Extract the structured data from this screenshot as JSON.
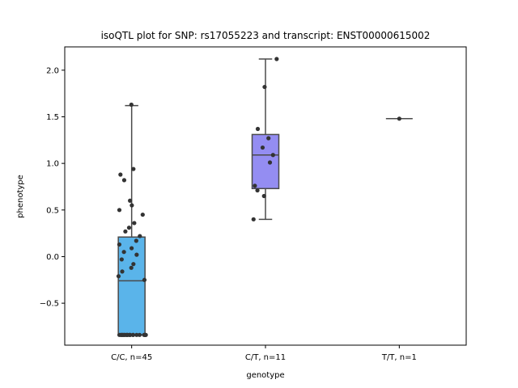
{
  "chart_data": {
    "type": "box",
    "title": "isoQTL plot for SNP: rs17055223 and transcript: ENST00000615002",
    "xlabel": "genotype",
    "ylabel": "phenotype",
    "ylim": [
      -0.95,
      2.25
    ],
    "yticks": [
      -0.5,
      0.0,
      0.5,
      1.0,
      1.5,
      2.0
    ],
    "ytick_labels": [
      "−0.5",
      "0.0",
      "0.5",
      "1.0",
      "1.5",
      "2.0"
    ],
    "grid": false,
    "categories": [
      "C/C, n=45",
      "C/T, n=11",
      "T/T, n=1"
    ],
    "boxes": [
      {
        "category": "C/C, n=45",
        "color": "#5ab4ea",
        "whisker_low": -0.84,
        "q1": -0.84,
        "median": -0.26,
        "q3": 0.21,
        "whisker_high": 1.62
      },
      {
        "category": "C/T, n=11",
        "color": "#948df2",
        "whisker_low": 0.4,
        "q1": 0.73,
        "median": 1.09,
        "q3": 1.31,
        "whisker_high": 2.12
      },
      {
        "category": "T/T, n=1",
        "color": "#c070e0",
        "whisker_low": 1.48,
        "q1": 1.48,
        "median": 1.48,
        "q3": 1.48,
        "whisker_high": 1.48
      }
    ],
    "points": [
      {
        "category": "C/C, n=45",
        "values": [
          1.63,
          0.94,
          0.88,
          0.82,
          0.6,
          0.55,
          0.5,
          0.45,
          0.36,
          0.31,
          0.27,
          0.22,
          0.17,
          0.13,
          0.09,
          0.05,
          0.02,
          -0.03,
          -0.08,
          -0.12,
          -0.16,
          -0.21,
          -0.25,
          -0.84,
          -0.84,
          -0.84,
          -0.84,
          -0.84,
          -0.84,
          -0.84,
          -0.84,
          -0.84,
          -0.84,
          -0.84,
          -0.84,
          -0.84,
          -0.84,
          -0.84,
          -0.84,
          -0.84,
          -0.84,
          -0.84,
          -0.84,
          -0.84,
          -0.84
        ]
      },
      {
        "category": "C/T, n=11",
        "values": [
          2.12,
          1.82,
          1.37,
          1.27,
          1.17,
          1.09,
          1.01,
          0.76,
          0.71,
          0.65,
          0.4
        ]
      },
      {
        "category": "T/T, n=1",
        "values": [
          1.48
        ]
      }
    ]
  }
}
